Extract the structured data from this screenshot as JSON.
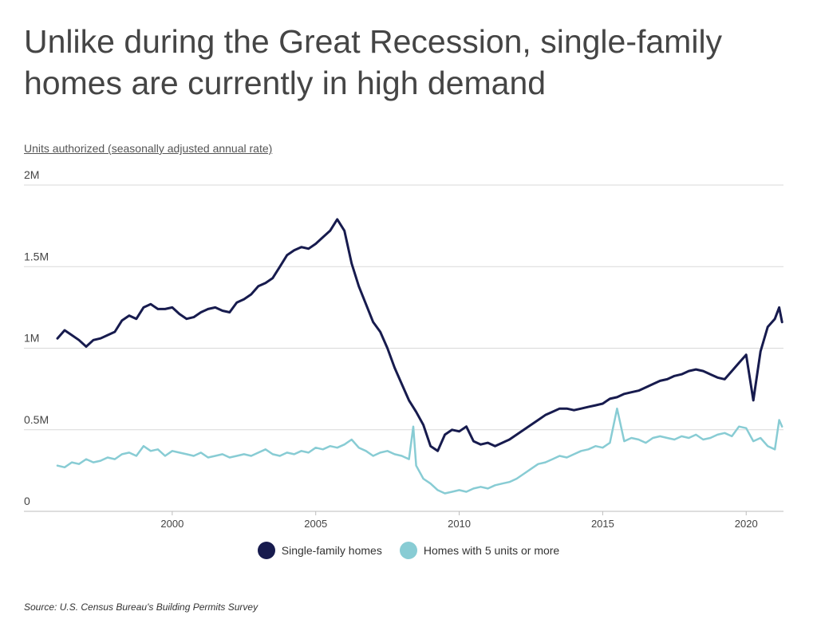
{
  "title": "Unlike during the Great Recession, single-family homes are currently in high demand",
  "subtitle": "Units authorized (seasonally adjusted annual rate)",
  "source": "Source:  U.S. Census Bureau's Building Permits Survey",
  "colors": {
    "single_family": "#171b4e",
    "multi_family": "#88ccd4",
    "grid": "#d9d9d9"
  },
  "chart_data": {
    "type": "line",
    "xlabel": "",
    "ylabel": "",
    "xlim": [
      1996,
      2021.3
    ],
    "ylim": [
      0,
      2000000
    ],
    "y_ticks": [
      {
        "value": 0,
        "label": "0"
      },
      {
        "value": 500000,
        "label": "0.5M"
      },
      {
        "value": 1000000,
        "label": "1M"
      },
      {
        "value": 1500000,
        "label": "1.5M"
      },
      {
        "value": 2000000,
        "label": "2M"
      }
    ],
    "x_ticks": [
      {
        "value": 2000,
        "label": "2000"
      },
      {
        "value": 2005,
        "label": "2005"
      },
      {
        "value": 2010,
        "label": "2010"
      },
      {
        "value": 2015,
        "label": "2015"
      },
      {
        "value": 2020,
        "label": "2020"
      }
    ],
    "grid": true,
    "legend_position": "bottom-center",
    "series": [
      {
        "name": "Single-family homes",
        "color": "#171b4e",
        "x": [
          1996.0,
          1996.25,
          1996.5,
          1996.75,
          1997.0,
          1997.25,
          1997.5,
          1997.75,
          1998.0,
          1998.25,
          1998.5,
          1998.75,
          1999.0,
          1999.25,
          1999.5,
          1999.75,
          2000.0,
          2000.25,
          2000.5,
          2000.75,
          2001.0,
          2001.25,
          2001.5,
          2001.75,
          2002.0,
          2002.25,
          2002.5,
          2002.75,
          2003.0,
          2003.25,
          2003.5,
          2003.75,
          2004.0,
          2004.25,
          2004.5,
          2004.75,
          2005.0,
          2005.25,
          2005.5,
          2005.75,
          2006.0,
          2006.25,
          2006.5,
          2006.75,
          2007.0,
          2007.25,
          2007.5,
          2007.75,
          2008.0,
          2008.25,
          2008.5,
          2008.75,
          2009.0,
          2009.25,
          2009.5,
          2009.75,
          2010.0,
          2010.25,
          2010.5,
          2010.75,
          2011.0,
          2011.25,
          2011.5,
          2011.75,
          2012.0,
          2012.25,
          2012.5,
          2012.75,
          2013.0,
          2013.25,
          2013.5,
          2013.75,
          2014.0,
          2014.25,
          2014.5,
          2014.75,
          2015.0,
          2015.25,
          2015.5,
          2015.75,
          2016.0,
          2016.25,
          2016.5,
          2016.75,
          2017.0,
          2017.25,
          2017.5,
          2017.75,
          2018.0,
          2018.25,
          2018.5,
          2018.75,
          2019.0,
          2019.25,
          2019.5,
          2019.75,
          2020.0,
          2020.25,
          2020.5,
          2020.75,
          2021.0,
          2021.15,
          2021.25
        ],
        "values": [
          1060000,
          1110000,
          1080000,
          1050000,
          1010000,
          1050000,
          1060000,
          1080000,
          1100000,
          1170000,
          1200000,
          1180000,
          1250000,
          1270000,
          1240000,
          1240000,
          1250000,
          1210000,
          1180000,
          1190000,
          1220000,
          1240000,
          1250000,
          1230000,
          1220000,
          1280000,
          1300000,
          1330000,
          1380000,
          1400000,
          1430000,
          1500000,
          1570000,
          1600000,
          1620000,
          1610000,
          1640000,
          1680000,
          1720000,
          1790000,
          1720000,
          1520000,
          1380000,
          1270000,
          1160000,
          1100000,
          1000000,
          880000,
          780000,
          680000,
          610000,
          530000,
          400000,
          370000,
          470000,
          500000,
          490000,
          520000,
          430000,
          410000,
          420000,
          400000,
          420000,
          440000,
          470000,
          500000,
          530000,
          560000,
          590000,
          610000,
          630000,
          630000,
          620000,
          630000,
          640000,
          650000,
          660000,
          690000,
          700000,
          720000,
          730000,
          740000,
          760000,
          780000,
          800000,
          810000,
          830000,
          840000,
          860000,
          870000,
          860000,
          840000,
          820000,
          810000,
          860000,
          910000,
          960000,
          680000,
          980000,
          1130000,
          1180000,
          1250000,
          1160000
        ]
      },
      {
        "name": "Homes with 5 units or more",
        "color": "#88ccd4",
        "x": [
          1996.0,
          1996.25,
          1996.5,
          1996.75,
          1997.0,
          1997.25,
          1997.5,
          1997.75,
          1998.0,
          1998.25,
          1998.5,
          1998.75,
          1999.0,
          1999.25,
          1999.5,
          1999.75,
          2000.0,
          2000.25,
          2000.5,
          2000.75,
          2001.0,
          2001.25,
          2001.5,
          2001.75,
          2002.0,
          2002.25,
          2002.5,
          2002.75,
          2003.0,
          2003.25,
          2003.5,
          2003.75,
          2004.0,
          2004.25,
          2004.5,
          2004.75,
          2005.0,
          2005.25,
          2005.5,
          2005.75,
          2006.0,
          2006.25,
          2006.5,
          2006.75,
          2007.0,
          2007.25,
          2007.5,
          2007.75,
          2008.0,
          2008.25,
          2008.4,
          2008.5,
          2008.75,
          2009.0,
          2009.25,
          2009.5,
          2009.75,
          2010.0,
          2010.25,
          2010.5,
          2010.75,
          2011.0,
          2011.25,
          2011.5,
          2011.75,
          2012.0,
          2012.25,
          2012.5,
          2012.75,
          2013.0,
          2013.25,
          2013.5,
          2013.75,
          2014.0,
          2014.25,
          2014.5,
          2014.75,
          2015.0,
          2015.25,
          2015.5,
          2015.75,
          2016.0,
          2016.25,
          2016.5,
          2016.75,
          2017.0,
          2017.25,
          2017.5,
          2017.75,
          2018.0,
          2018.25,
          2018.5,
          2018.75,
          2019.0,
          2019.25,
          2019.5,
          2019.75,
          2020.0,
          2020.25,
          2020.5,
          2020.75,
          2021.0,
          2021.15,
          2021.25
        ],
        "values": [
          280000,
          270000,
          300000,
          290000,
          320000,
          300000,
          310000,
          330000,
          320000,
          350000,
          360000,
          340000,
          400000,
          370000,
          380000,
          340000,
          370000,
          360000,
          350000,
          340000,
          360000,
          330000,
          340000,
          350000,
          330000,
          340000,
          350000,
          340000,
          360000,
          380000,
          350000,
          340000,
          360000,
          350000,
          370000,
          360000,
          390000,
          380000,
          400000,
          390000,
          410000,
          440000,
          390000,
          370000,
          340000,
          360000,
          370000,
          350000,
          340000,
          320000,
          520000,
          280000,
          200000,
          170000,
          130000,
          110000,
          120000,
          130000,
          120000,
          140000,
          150000,
          140000,
          160000,
          170000,
          180000,
          200000,
          230000,
          260000,
          290000,
          300000,
          320000,
          340000,
          330000,
          350000,
          370000,
          380000,
          400000,
          390000,
          420000,
          630000,
          430000,
          450000,
          440000,
          420000,
          450000,
          460000,
          450000,
          440000,
          460000,
          450000,
          470000,
          440000,
          450000,
          470000,
          480000,
          460000,
          520000,
          510000,
          430000,
          450000,
          400000,
          380000,
          560000,
          520000
        ]
      }
    ]
  }
}
